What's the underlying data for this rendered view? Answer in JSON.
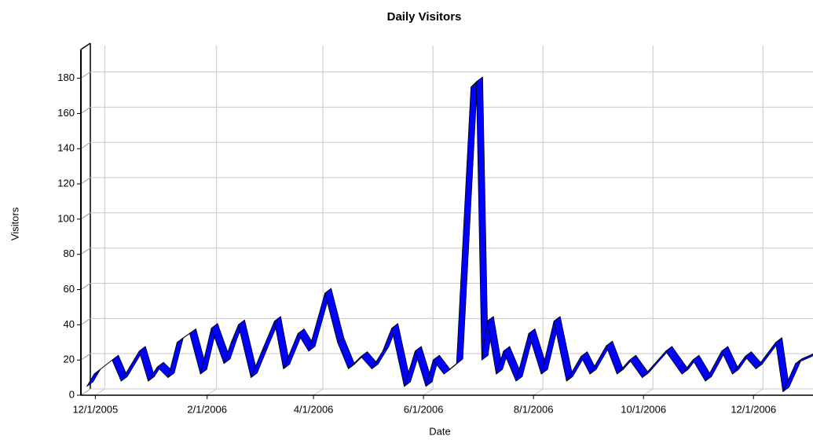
{
  "chart_data": {
    "type": "ribbon",
    "title": "Daily Visitors",
    "x_label": "Date",
    "y_label": "Visitors",
    "color": "#0000ff",
    "grid": true,
    "x": [
      "11/25/2005",
      "11/29/2005",
      "12/9/2005",
      "12/14/2005",
      "12/24/2005",
      "12/29/2005",
      "1/3/2006",
      "1/9/2006",
      "1/14/2006",
      "1/21/2006",
      "1/27/2006",
      "2/2/2006",
      "2/9/2006",
      "2/13/2006",
      "2/17/2006",
      "2/24/2006",
      "3/2/2006",
      "3/9/2006",
      "3/14/2006",
      "3/22/2006",
      "3/28/2006",
      "4/6/2006",
      "4/13/2006",
      "4/19/2006",
      "4/26/2006",
      "5/2/2006",
      "5/8/2006",
      "5/13/2006",
      "5/20/2006",
      "5/26/2006",
      "6/1/2006",
      "6/5/2006",
      "6/11/2006",
      "6/18/2006",
      "6/26/2006",
      "6/29/2006",
      "7/2/2006",
      "7/5/2006",
      "7/10/2006",
      "7/14/2006",
      "7/21/2006",
      "7/28/2006",
      "8/4/2006",
      "8/11/2006",
      "8/18/2006",
      "8/26/2006",
      "8/31/2006",
      "9/9/2006",
      "9/15/2006",
      "9/22/2006",
      "9/29/2006",
      "10/12/2006",
      "10/21/2006",
      "10/27/2006",
      "11/3/2006",
      "11/12/2006",
      "11/18/2006",
      "11/25/2006",
      "12/1/2006",
      "12/12/2006",
      "12/16/2006",
      "12/23/2006",
      "1/1/2007"
    ],
    "values": [
      5,
      12,
      20,
      8,
      25,
      8,
      16,
      10,
      30,
      35,
      12,
      38,
      18,
      30,
      40,
      10,
      25,
      42,
      15,
      35,
      25,
      58,
      30,
      15,
      22,
      15,
      25,
      38,
      5,
      25,
      5,
      20,
      12,
      18,
      175,
      178,
      20,
      42,
      12,
      25,
      8,
      35,
      12,
      42,
      8,
      22,
      12,
      28,
      12,
      20,
      10,
      25,
      12,
      20,
      8,
      25,
      12,
      22,
      15,
      30,
      2,
      18,
      22
    ],
    "xlim": [
      "11/23/2005",
      "1/3/2007"
    ],
    "xticks": [
      "12/1/2005",
      "2/1/2006",
      "4/1/2006",
      "6/1/2006",
      "8/1/2006",
      "10/1/2006",
      "12/1/2006"
    ],
    "ylim": [
      0,
      195
    ],
    "yticks": [
      0,
      20,
      40,
      60,
      80,
      100,
      120,
      140,
      160,
      180
    ]
  }
}
